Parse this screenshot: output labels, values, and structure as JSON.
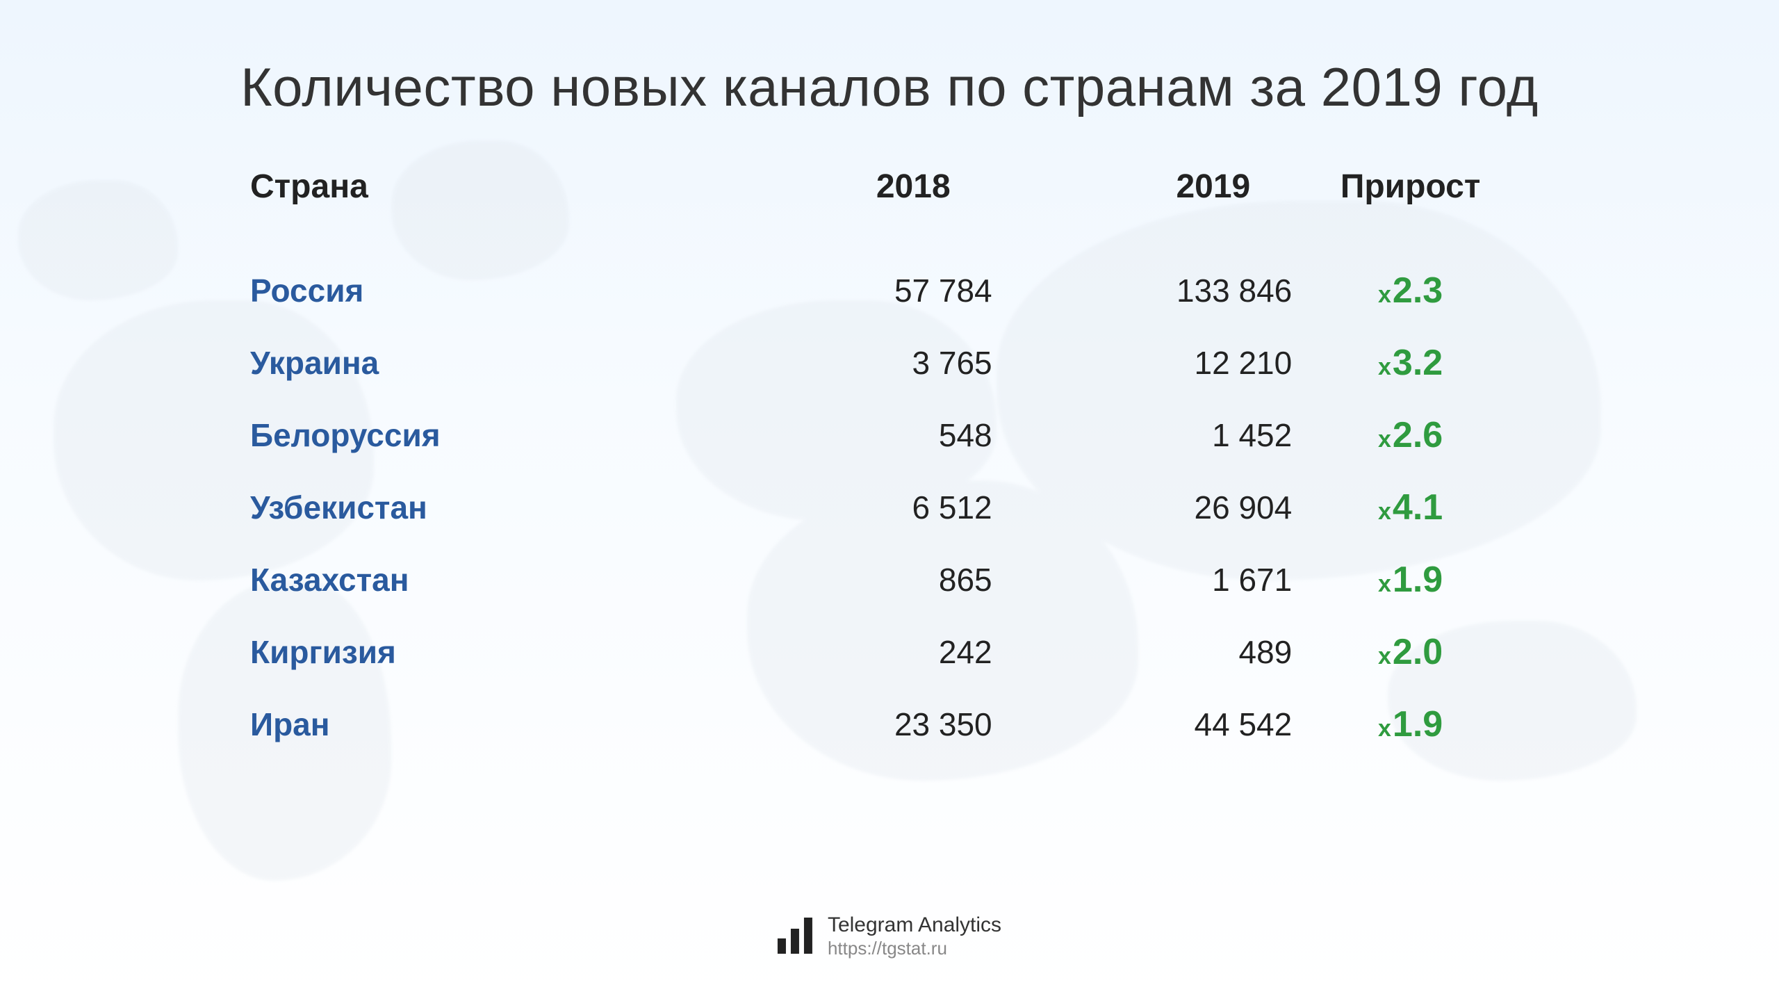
{
  "title": "Количество новых каналов по странам за 2019 год",
  "table": {
    "type": "table",
    "columns": [
      "Страна",
      "2018",
      "2019",
      "Прирост"
    ],
    "column_keys": [
      "country",
      "y2018",
      "y2019",
      "growth"
    ],
    "column_align": [
      "left",
      "right",
      "right",
      "center"
    ],
    "header_fontsize": 48,
    "header_color": "#222222",
    "country_color": "#2a5a9e",
    "country_fontsize": 46,
    "country_fontweight": 700,
    "number_color": "#222222",
    "number_fontsize": 46,
    "growth_color": "#2f9b3f",
    "growth_x_fontsize": 34,
    "growth_val_fontsize": 52,
    "growth_prefix": "x",
    "rows": [
      {
        "country": "Россия",
        "y2018": "57 784",
        "y2019": "133 846",
        "growth": "2.3"
      },
      {
        "country": "Украина",
        "y2018": "3 765",
        "y2019": "12 210",
        "growth": "3.2"
      },
      {
        "country": "Белоруссия",
        "y2018": "548",
        "y2019": "1 452",
        "growth": "2.6"
      },
      {
        "country": "Узбекистан",
        "y2018": "6 512",
        "y2019": "26 904",
        "growth": "4.1"
      },
      {
        "country": "Казахстан",
        "y2018": "865",
        "y2019": "1 671",
        "growth": "1.9"
      },
      {
        "country": "Киргизия",
        "y2018": "242",
        "y2019": "489",
        "growth": "2.0"
      },
      {
        "country": "Иран",
        "y2018": "23 350",
        "y2019": "44 542",
        "growth": "1.9"
      }
    ]
  },
  "style": {
    "background_gradient_top": "#eef6fe",
    "background_gradient_bottom": "#ffffff",
    "map_silhouette_color": "#e3e9ef",
    "title_color": "#333333",
    "title_fontsize": 78,
    "title_fontweight": 400
  },
  "footer": {
    "brand": "Telegram Analytics",
    "url": "https://tgstat.ru",
    "icon_bar_heights": [
      22,
      36,
      52
    ],
    "icon_bar_color": "#222222",
    "brand_color": "#333333",
    "url_color": "#888888"
  }
}
